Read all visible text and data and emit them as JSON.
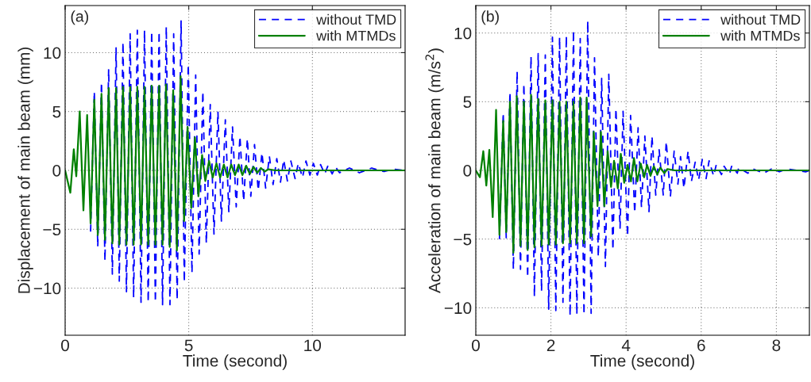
{
  "chart_data": [
    {
      "type": "line",
      "xlabel": "Time (second)",
      "ylabel": "Displacement of main beam (mm)",
      "annotations": [
        "(a)"
      ],
      "xlim": [
        0,
        13.75
      ],
      "ylim": [
        -14,
        14
      ],
      "xticks": [
        0,
        5,
        10
      ],
      "yticks": [
        -10,
        -5,
        0,
        5,
        10
      ],
      "grid": true,
      "legend": "top right",
      "series": [
        {
          "name": "without TMD",
          "color": "#0000ff",
          "line_style": "dashed",
          "x": [
            1.03,
            1.18,
            1.32,
            1.47,
            1.61,
            1.76,
            1.91,
            2.06,
            2.19,
            2.34,
            2.48,
            2.63,
            2.77,
            2.92,
            3.07,
            3.21,
            3.36,
            3.5,
            3.65,
            3.8,
            3.94,
            4.09,
            4.24,
            4.39,
            4.53,
            4.69,
            4.82,
            4.98,
            5.13,
            5.28,
            5.42,
            5.57,
            5.71,
            5.87,
            6.02,
            6.18,
            6.32,
            6.48,
            6.62,
            6.77,
            6.92,
            7.07,
            7.22,
            7.37,
            7.51,
            7.66,
            7.81,
            7.96,
            8.11,
            8.26,
            8.41,
            8.56,
            8.71,
            8.84,
            8.99,
            9.13,
            9.3,
            9.43,
            9.6,
            9.74,
            9.9,
            10.04,
            10.2,
            10.33,
            10.5,
            10.63,
            10.8,
            10.93,
            11.1,
            11.5,
            11.9,
            12.4,
            12.9,
            13.3,
            13.75
          ],
          "values": [
            -5.2,
            6.7,
            -6.5,
            7.5,
            -7.7,
            8.6,
            -8.8,
            10.4,
            -9.4,
            10.9,
            -10.3,
            11.6,
            -10.8,
            11.9,
            -11.2,
            11.9,
            -11.2,
            11.8,
            -11.2,
            11.8,
            -11.4,
            12.2,
            -11.4,
            11.6,
            -11,
            12.7,
            -9.5,
            9,
            -8.7,
            8.1,
            -7.1,
            6.7,
            -6.2,
            5.6,
            -5.4,
            5,
            -4.3,
            4.3,
            -3.5,
            3.7,
            -3.1,
            2.9,
            -2.6,
            2.7,
            -2.2,
            2.2,
            -1.7,
            1.5,
            -1.5,
            1.2,
            -1.2,
            1.0,
            -1.0,
            0.9,
            -0.9,
            0.8,
            -0.7,
            0.6,
            -0.6,
            0.8,
            -0.4,
            0.6,
            -0.4,
            0.5,
            -0.3,
            0.4,
            -0.3,
            0.3,
            -0.2,
            0.2,
            -0.2,
            0.2,
            -0.1,
            0.1,
            0
          ]
        },
        {
          "name": "with MTMDs",
          "color": "#008000",
          "line_style": "solid",
          "x": [
            0,
            0.21,
            0.35,
            0.45,
            0.59,
            0.74,
            0.89,
            1.03,
            1.18,
            1.32,
            1.47,
            1.61,
            1.76,
            1.91,
            2.06,
            2.19,
            2.34,
            2.48,
            2.63,
            2.77,
            2.92,
            3.07,
            3.21,
            3.36,
            3.5,
            3.65,
            3.8,
            3.94,
            4.08,
            4.23,
            4.37,
            4.52,
            4.67,
            4.81,
            4.95,
            5.1,
            5.25,
            5.39,
            5.54,
            5.67,
            5.82,
            5.97,
            6.12,
            6.27,
            6.42,
            6.57,
            6.72,
            6.87,
            7.02,
            7.17,
            7.32,
            7.47,
            7.62,
            7.77,
            7.92,
            8.07,
            8.22,
            8.5,
            13.75
          ],
          "values": [
            0,
            -1.9,
            1.8,
            -0.5,
            5,
            -3.4,
            4.7,
            -4.5,
            6,
            -5.5,
            6.5,
            -5.9,
            7,
            -6.2,
            7,
            -6.3,
            7.1,
            -6.3,
            7.1,
            -6.3,
            7.1,
            -6.3,
            7.1,
            -6.3,
            7.2,
            -6.3,
            7.2,
            -6.3,
            7.3,
            -6.5,
            6.8,
            -6.8,
            8,
            -4.3,
            3.7,
            -3.2,
            2.8,
            -2.2,
            1.3,
            -0.9,
            0.8,
            -0.6,
            0.6,
            -0.6,
            0.5,
            -0.6,
            0.5,
            -0.4,
            0.5,
            -0.4,
            0.4,
            -0.3,
            0.3,
            -0.2,
            0.2,
            -0.1,
            0.1,
            0,
            0
          ]
        }
      ]
    },
    {
      "type": "line",
      "xlabel": "Time (second)",
      "ylabel": "Acceleration of main beam (m/s$^{2}$)",
      "annotations": [
        "(b)"
      ],
      "xlim": [
        0,
        8.88
      ],
      "ylim": [
        -12,
        12
      ],
      "xticks": [
        0,
        2,
        4,
        6,
        8
      ],
      "yticks": [
        -10,
        -5,
        0,
        5,
        10
      ],
      "grid": true,
      "legend": "top right",
      "series": [
        {
          "name": "without TMD",
          "color": "#0000ff",
          "line_style": "dashed",
          "x": [
            0.63,
            0.73,
            0.81,
            0.91,
            1.0,
            1.1,
            1.19,
            1.28,
            1.38,
            1.47,
            1.56,
            1.66,
            1.75,
            1.85,
            1.94,
            2.04,
            2.13,
            2.23,
            2.32,
            2.41,
            2.51,
            2.6,
            2.69,
            2.78,
            2.88,
            2.98,
            3.07,
            3.16,
            3.26,
            3.35,
            3.45,
            3.54,
            3.65,
            3.73,
            3.84,
            3.92,
            4.04,
            4.12,
            4.23,
            4.32,
            4.41,
            4.5,
            4.61,
            4.69,
            4.79,
            4.88,
            4.99,
            5.07,
            5.18,
            5.28,
            5.38,
            5.45,
            5.54,
            5.65,
            5.74,
            5.84,
            5.93,
            6.03,
            6.13,
            6.21,
            6.33,
            6.4,
            6.54,
            6.61,
            6.75,
            6.81,
            6.96,
            7.0,
            7.24,
            7.38,
            7.66,
            7.87,
            8.08,
            8.29,
            8.79,
            8.88
          ],
          "values": [
            -5,
            4.2,
            -4.9,
            5.7,
            -7.2,
            7.2,
            -7.2,
            6.3,
            -7.8,
            8.3,
            -9.2,
            8.5,
            -8.8,
            8.4,
            -10.1,
            9.7,
            -10.2,
            9.7,
            -9.6,
            9.8,
            -10.6,
            10.2,
            -10.5,
            9.6,
            -10.5,
            10.9,
            -10.4,
            8.2,
            -6.3,
            6.7,
            -7,
            7,
            -5.8,
            4.5,
            -4.2,
            4.3,
            -4.8,
            4,
            -3.1,
            3.1,
            -2.7,
            2.5,
            -3,
            2.5,
            -1.8,
            1.5,
            -1.8,
            2.1,
            -1.9,
            1.4,
            -1,
            1,
            -1.3,
            1.4,
            -0.8,
            0.6,
            -0.7,
            0.8,
            -0.6,
            0.7,
            -0.4,
            0.4,
            -0.3,
            0.3,
            -0.3,
            0.3,
            -0.2,
            0.2,
            -0.2,
            0.1,
            -0.2,
            0.1,
            -0.1,
            0.1,
            -0.1,
            0
          ]
        },
        {
          "name": "with MTMDs",
          "color": "#008000",
          "line_style": "solid",
          "x": [
            0,
            0.11,
            0.2,
            0.28,
            0.36,
            0.45,
            0.54,
            0.63,
            0.73,
            0.81,
            0.91,
            1.0,
            1.09,
            1.19,
            1.28,
            1.38,
            1.47,
            1.56,
            1.66,
            1.75,
            1.85,
            1.94,
            2.04,
            2.13,
            2.23,
            2.32,
            2.41,
            2.51,
            2.6,
            2.69,
            2.78,
            2.88,
            2.95,
            3.07,
            3.14,
            3.24,
            3.33,
            3.42,
            3.51,
            3.6,
            3.68,
            3.78,
            3.86,
            3.95,
            4.04,
            4.13,
            4.21,
            4.3,
            4.39,
            4.48,
            4.56,
            4.65,
            4.74,
            4.83,
            4.91,
            5.02,
            5.1,
            5.3,
            8.88
          ],
          "values": [
            0,
            -0.5,
            1.4,
            -1.1,
            1.5,
            -3.4,
            4.4,
            -4.7,
            3.6,
            -4.5,
            5,
            -6,
            5.4,
            -5.5,
            5,
            -5.8,
            5.5,
            -5.6,
            5.2,
            -5.5,
            5.1,
            -5.4,
            5.1,
            -5.4,
            5,
            -5.3,
            5,
            -5.3,
            5,
            -5.3,
            5.3,
            -5.3,
            5.3,
            -4.8,
            2.8,
            -2.6,
            2.8,
            -2.6,
            1.4,
            -1.2,
            0.7,
            -1.3,
            1.2,
            -0.9,
            0.4,
            -0.8,
            0.9,
            -0.8,
            0.5,
            -0.5,
            0.4,
            -0.4,
            0.3,
            -0.3,
            0.2,
            -0.2,
            0.1,
            0,
            0
          ]
        }
      ]
    }
  ]
}
